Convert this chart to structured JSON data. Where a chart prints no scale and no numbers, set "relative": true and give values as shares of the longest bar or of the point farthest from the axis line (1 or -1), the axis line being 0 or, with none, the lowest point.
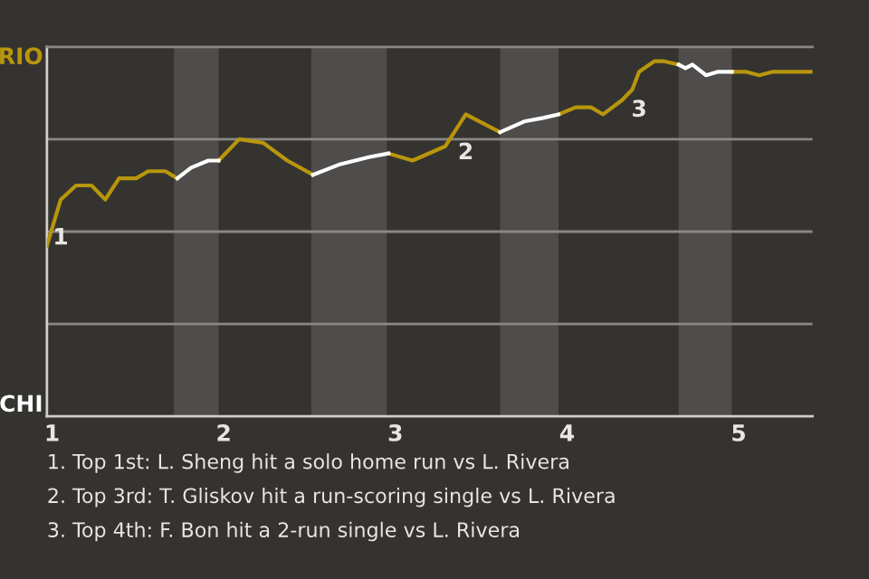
{
  "chart_data": {
    "type": "line",
    "relative": true,
    "grid": "y",
    "marker": "none",
    "line_style": "solid",
    "xlim": [
      0.97,
      5.43
    ],
    "xticks": [
      1,
      2,
      3,
      4,
      5
    ],
    "bands": [
      {
        "axis": "x",
        "from": 1.71,
        "to": 1.97,
        "color": "#4f4d4b"
      },
      {
        "axis": "x",
        "from": 2.51,
        "to": 2.95,
        "color": "#4f4d4b"
      },
      {
        "axis": "x",
        "from": 3.61,
        "to": 3.95,
        "color": "#4f4d4b"
      },
      {
        "axis": "x",
        "from": 4.65,
        "to": 4.96,
        "color": "#4f4d4b"
      }
    ],
    "series": [
      {
        "color": "#b8960c",
        "x": [
          0.97,
          1.05,
          1.14,
          1.23,
          1.31,
          1.39,
          1.49,
          1.56,
          1.66,
          1.73,
          1.84,
          1.97,
          2.09,
          2.23,
          2.37,
          2.52,
          2.72,
          2.96,
          3.1,
          3.29,
          3.41,
          3.61,
          3.77,
          3.95,
          4.05,
          4.14,
          4.21,
          4.32,
          4.38,
          4.42,
          4.51,
          4.56,
          4.65,
          4.81,
          4.96,
          5.04,
          5.12,
          5.2,
          5.43
        ],
        "values": [
          0.48,
          0.61,
          0.65,
          0.65,
          0.61,
          0.67,
          0.67,
          0.69,
          0.69,
          0.67,
          null,
          0.72,
          0.78,
          0.77,
          0.72,
          0.68,
          null,
          0.74,
          0.72,
          0.76,
          0.85,
          0.8,
          null,
          0.85,
          0.87,
          0.87,
          0.85,
          0.89,
          0.92,
          0.97,
          1,
          1,
          0.99,
          null,
          0.97,
          0.97,
          0.96,
          0.97,
          0.97
        ]
      },
      {
        "color": "#ffffff",
        "x": [
          1.73,
          1.81,
          1.91,
          1.97,
          2.26,
          2.52,
          2.68,
          2.85,
          2.96,
          3.3,
          3.61,
          3.75,
          3.86,
          3.95,
          4.34,
          4.65,
          4.69,
          4.73,
          4.81,
          4.88,
          4.96
        ],
        "values": [
          0.67,
          0.7,
          0.72,
          0.72,
          null,
          0.68,
          0.71,
          0.73,
          0.74,
          null,
          0.8,
          0.83,
          0.84,
          0.85,
          null,
          0.99,
          0.98,
          0.99,
          0.96,
          0.97,
          0.97
        ]
      }
    ],
    "annotations": [
      "RIO",
      "CHI",
      {
        "text": "1",
        "x": 1.05,
        "y": 0.61
      },
      {
        "text": "2",
        "x": 3.41,
        "y": 0.85
      },
      {
        "text": "3",
        "x": 4.42,
        "y": 0.97
      },
      "1. Top 1st: L. Sheng hit a solo home run vs L. Rivera",
      "2. Top 3rd: T. Gliskov hit a run-scoring single vs L. Rivera",
      "3. Top 4th: F. Bon hit a 2-run single vs L. Rivera"
    ]
  }
}
